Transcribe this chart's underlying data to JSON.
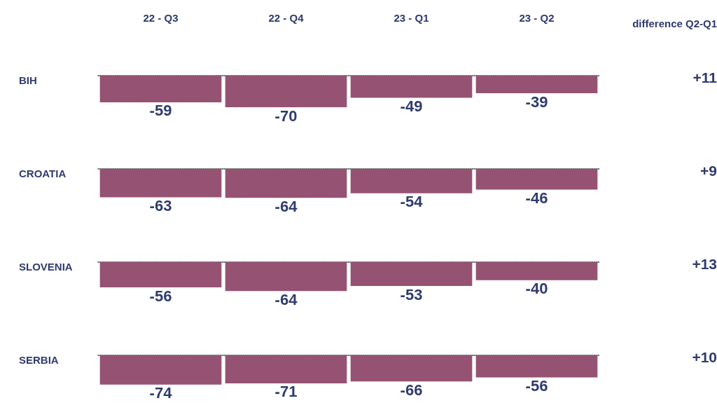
{
  "chart_data": [
    {
      "type": "bar",
      "title": "BIH",
      "categories": [
        "22 - Q3",
        "22 - Q4",
        "23 - Q1",
        "23 - Q2"
      ],
      "values": [
        -59,
        -70,
        -49,
        -39
      ],
      "color": "#955273",
      "data_labels": true,
      "tick_labels": "x",
      "annotations": [
        "difference Q2-Q1",
        "+11"
      ]
    },
    {
      "type": "bar",
      "title": "CROATIA",
      "categories": [
        null,
        null,
        null,
        null
      ],
      "values": [
        -63,
        -64,
        -54,
        -46
      ],
      "color": "#955273",
      "data_labels": true,
      "tick_labels": false,
      "annotations": [
        "+9"
      ]
    },
    {
      "type": "bar",
      "title": "SLOVENIA",
      "categories": [
        null,
        null,
        null,
        null
      ],
      "values": [
        -56,
        -64,
        -53,
        -40
      ],
      "color": "#955273",
      "data_labels": true,
      "tick_labels": false,
      "annotations": [
        "+13"
      ]
    },
    {
      "type": "bar",
      "title": "SERBIA",
      "categories": [
        null,
        null,
        null,
        null
      ],
      "values": [
        -74,
        -71,
        -66,
        -56
      ],
      "color": "#955273",
      "data_labels": true,
      "tick_labels": false,
      "annotations": [
        "+10"
      ]
    }
  ]
}
